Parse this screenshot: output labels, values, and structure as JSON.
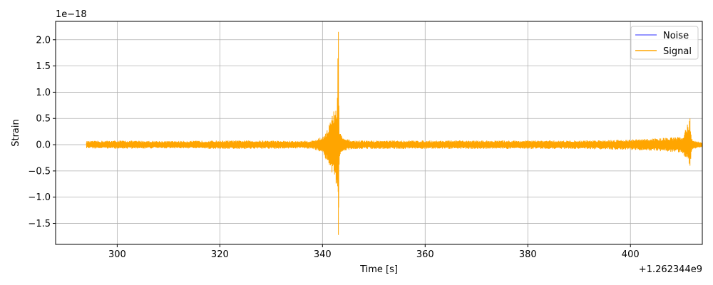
{
  "chart_data": {
    "type": "line",
    "title": "",
    "xlabel": "Time [s]",
    "ylabel": "Strain",
    "x_offset_label": "+1.262344e9",
    "y_scale_label": "1e−18",
    "xlim": [
      288,
      414
    ],
    "ylim": [
      -1.9,
      2.35
    ],
    "x_ticks": [
      300,
      320,
      340,
      360,
      380,
      400
    ],
    "x_tick_labels": [
      "300",
      "320",
      "340",
      "360",
      "380",
      "400"
    ],
    "y_ticks": [
      -1.5,
      -1.0,
      -0.5,
      0.0,
      0.5,
      1.0,
      1.5,
      2.0
    ],
    "y_tick_labels": [
      "−1.5",
      "−1.0",
      "−0.5",
      "0.0",
      "0.5",
      "1.0",
      "1.5",
      "2.0"
    ],
    "grid": true,
    "legend_position": "top-right",
    "series": [
      {
        "name": "Noise",
        "color": "#0000ff",
        "x": [],
        "y": []
      },
      {
        "name": "Signal",
        "color": "#ffa500",
        "x": [
          294,
          300,
          310,
          320,
          330,
          335,
          338,
          340,
          341,
          342,
          342.8,
          343.1,
          343.3,
          344,
          346,
          350,
          360,
          370,
          380,
          390,
          400,
          405,
          408,
          410,
          411.6,
          411.9,
          412.2,
          414
        ],
        "y_upper": [
          0.07,
          0.08,
          0.07,
          0.08,
          0.08,
          0.07,
          0.08,
          0.15,
          0.32,
          0.6,
          0.78,
          2.15,
          0.3,
          0.12,
          0.08,
          0.08,
          0.08,
          0.08,
          0.08,
          0.08,
          0.1,
          0.12,
          0.14,
          0.15,
          0.5,
          0.15,
          0.08,
          0.05
        ],
        "y_lower": [
          -0.07,
          -0.08,
          -0.07,
          -0.08,
          -0.08,
          -0.07,
          -0.08,
          -0.15,
          -0.35,
          -0.65,
          -0.82,
          -1.72,
          -0.3,
          -0.12,
          -0.08,
          -0.08,
          -0.08,
          -0.08,
          -0.08,
          -0.08,
          -0.1,
          -0.12,
          -0.14,
          -0.15,
          -0.4,
          -0.15,
          -0.08,
          -0.05
        ]
      }
    ]
  }
}
